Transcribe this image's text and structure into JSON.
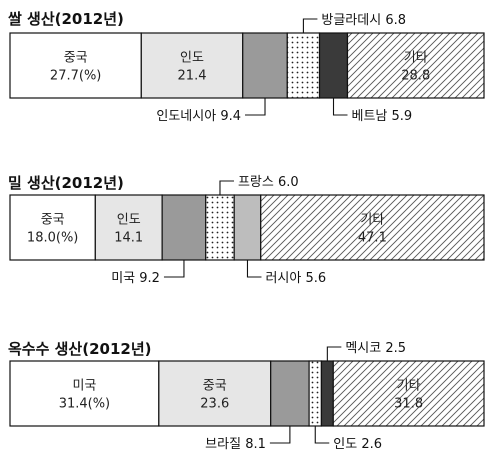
{
  "chart_data": [
    {
      "type": "bar",
      "stacked": true,
      "orientation": "horizontal",
      "title": "쌀 생산(2012년)",
      "unit": "(%)",
      "segments": [
        {
          "label": "중국",
          "value": 27.7,
          "value_text": "27.7(%)",
          "label_placement": "inside",
          "fill": "white"
        },
        {
          "label": "인도",
          "value": 21.4,
          "value_text": "21.4",
          "label_placement": "inside",
          "fill": "#e6e6e6"
        },
        {
          "label": "인도네시아",
          "value": 9.4,
          "value_text": "9.4",
          "label_placement": "below-left",
          "fill": "#9a9a9a"
        },
        {
          "label": "방글라데시",
          "value": 6.8,
          "value_text": "6.8",
          "label_placement": "above-right",
          "fill": "dots"
        },
        {
          "label": "베트남",
          "value": 5.9,
          "value_text": "5.9",
          "label_placement": "below-right",
          "fill": "#3a3a3a"
        },
        {
          "label": "기타",
          "value": 28.8,
          "value_text": "28.8",
          "label_placement": "inside",
          "fill": "hatch"
        }
      ]
    },
    {
      "type": "bar",
      "stacked": true,
      "orientation": "horizontal",
      "title": "밀 생산(2012년)",
      "unit": "(%)",
      "segments": [
        {
          "label": "중국",
          "value": 18.0,
          "value_text": "18.0(%)",
          "label_placement": "inside",
          "fill": "white"
        },
        {
          "label": "인도",
          "value": 14.1,
          "value_text": "14.1",
          "label_placement": "inside",
          "fill": "#e6e6e6"
        },
        {
          "label": "미국",
          "value": 9.2,
          "value_text": "9.2",
          "label_placement": "below-left",
          "fill": "#9a9a9a"
        },
        {
          "label": "프랑스",
          "value": 6.0,
          "value_text": "6.0",
          "label_placement": "above-right",
          "fill": "dots"
        },
        {
          "label": "러시아",
          "value": 5.6,
          "value_text": "5.6",
          "label_placement": "below-right",
          "fill": "#bdbdbd"
        },
        {
          "label": "기타",
          "value": 47.1,
          "value_text": "47.1",
          "label_placement": "inside",
          "fill": "hatch"
        }
      ]
    },
    {
      "type": "bar",
      "stacked": true,
      "orientation": "horizontal",
      "title": "옥수수 생산(2012년)",
      "unit": "(%)",
      "segments": [
        {
          "label": "미국",
          "value": 31.4,
          "value_text": "31.4(%)",
          "label_placement": "inside",
          "fill": "white"
        },
        {
          "label": "중국",
          "value": 23.6,
          "value_text": "23.6",
          "label_placement": "inside",
          "fill": "#e6e6e6"
        },
        {
          "label": "브라질",
          "value": 8.1,
          "value_text": "8.1",
          "label_placement": "below-left",
          "fill": "#9a9a9a"
        },
        {
          "label": "인도",
          "value": 2.6,
          "value_text": "2.6",
          "label_placement": "below-right",
          "fill": "dots"
        },
        {
          "label": "멕시코",
          "value": 2.5,
          "value_text": "2.5",
          "label_placement": "above-right",
          "fill": "#3a3a3a"
        },
        {
          "label": "기타",
          "value": 31.8,
          "value_text": "31.8",
          "label_placement": "inside",
          "fill": "hatch"
        }
      ]
    }
  ]
}
